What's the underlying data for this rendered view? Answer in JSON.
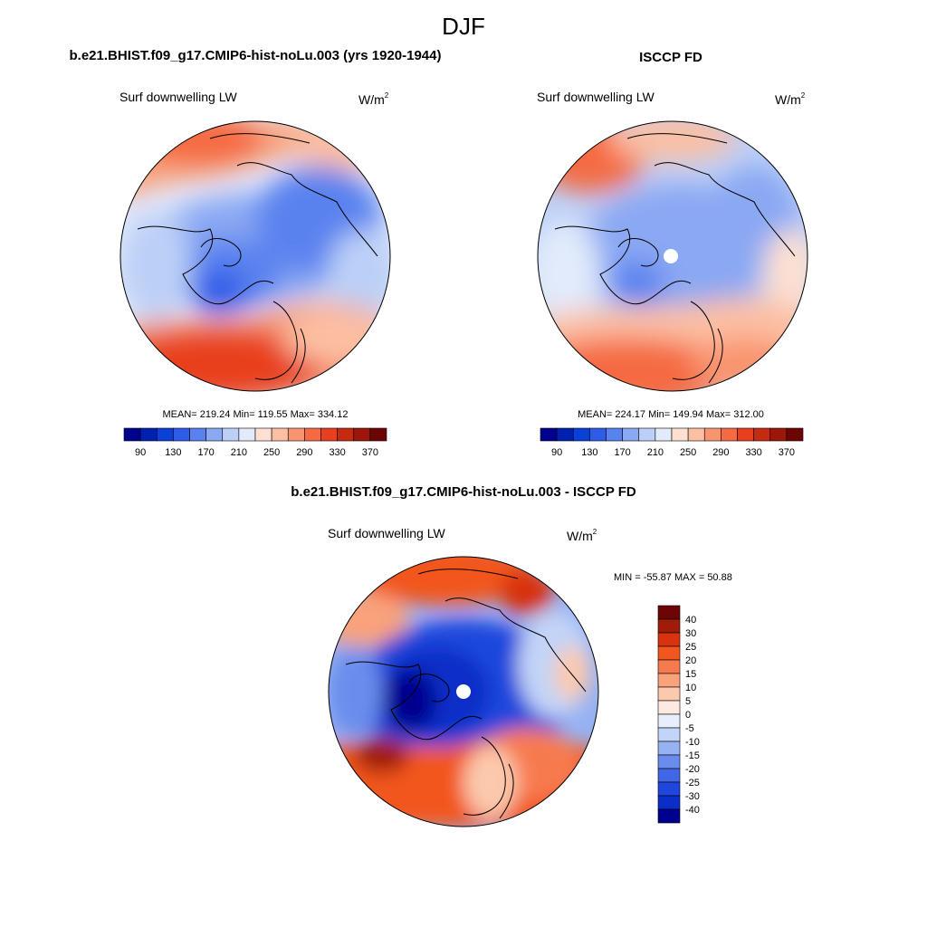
{
  "figure": {
    "season": "DJF",
    "variable": "Surf downwelling LW",
    "units_base": "W/m",
    "units_exp": "2"
  },
  "panels": [
    {
      "id": "model",
      "title": "b.e21.BHIST.f09_g17.CMIP6-hist-noLu.003 (yrs 1920-1944)",
      "stats": "MEAN= 219.24  Min= 119.55  Max= 334.12"
    },
    {
      "id": "obs",
      "title": "ISCCP FD",
      "stats": "MEAN= 224.17  Min= 149.94  Max= 312.00"
    }
  ],
  "diff_panel": {
    "title": "b.e21.BHIST.f09_g17.CMIP6-hist-noLu.003 - ISCCP FD",
    "stats": "MIN = -55.87 MAX =  50.88"
  },
  "abs_colorbar": {
    "colors": [
      "#00008f",
      "#0021b0",
      "#0a3fd8",
      "#2d5de8",
      "#5a82ef",
      "#8aa8f3",
      "#bcd0f7",
      "#e2ebfb",
      "#fde0d2",
      "#fcbfa3",
      "#f99470",
      "#f56a42",
      "#e8401f",
      "#c62a10",
      "#9c160b",
      "#6e0505"
    ],
    "tick_labels": [
      "90",
      "130",
      "170",
      "210",
      "250",
      "290",
      "330",
      "370"
    ]
  },
  "diff_colorbar": {
    "colors": [
      "#6e0505",
      "#a01c0a",
      "#d8320f",
      "#f2561f",
      "#f77a4f",
      "#f9a27c",
      "#fcc9ad",
      "#fde9e0",
      "#e8eefb",
      "#c2d4f7",
      "#96b2f2",
      "#6a8ded",
      "#4068e6",
      "#1f46dd",
      "#0a2fc8",
      "#00008f"
    ],
    "tick_labels": [
      "40",
      "30",
      "25",
      "20",
      "15",
      "10",
      "5",
      "0",
      "-5",
      "-10",
      "-15",
      "-20",
      "-25",
      "-30",
      "-40"
    ]
  }
}
